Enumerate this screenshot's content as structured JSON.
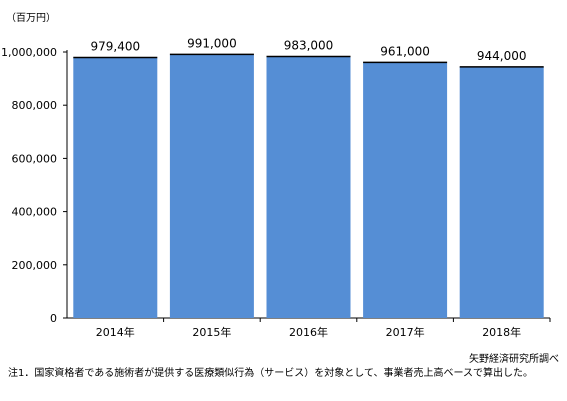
{
  "chart_data": {
    "type": "bar",
    "unit": "（百万円）",
    "categories": [
      "2014年",
      "2015年",
      "2016年",
      "2017年",
      "2018年"
    ],
    "values": [
      979400,
      991000,
      983000,
      961000,
      944000
    ],
    "data_labels": [
      "979,400",
      "991,000",
      "983,000",
      "961,000",
      "944,000"
    ],
    "y_ticks": [
      "0",
      "200,000",
      "400,000",
      "600,000",
      "800,000",
      "1,000,000"
    ],
    "y_tick_values": [
      0,
      200000,
      400000,
      600000,
      800000,
      1000000
    ],
    "ylim": [
      0,
      1000000
    ],
    "grid": false,
    "bar_color": "#558ED5",
    "bar_outline_color": "#000000"
  },
  "source": "矢野経済研究所調べ",
  "note": "注1．国家資格者である施術者が提供する医療類似行為（サービス）を対象として、事業者売上高ベースで算出した。"
}
